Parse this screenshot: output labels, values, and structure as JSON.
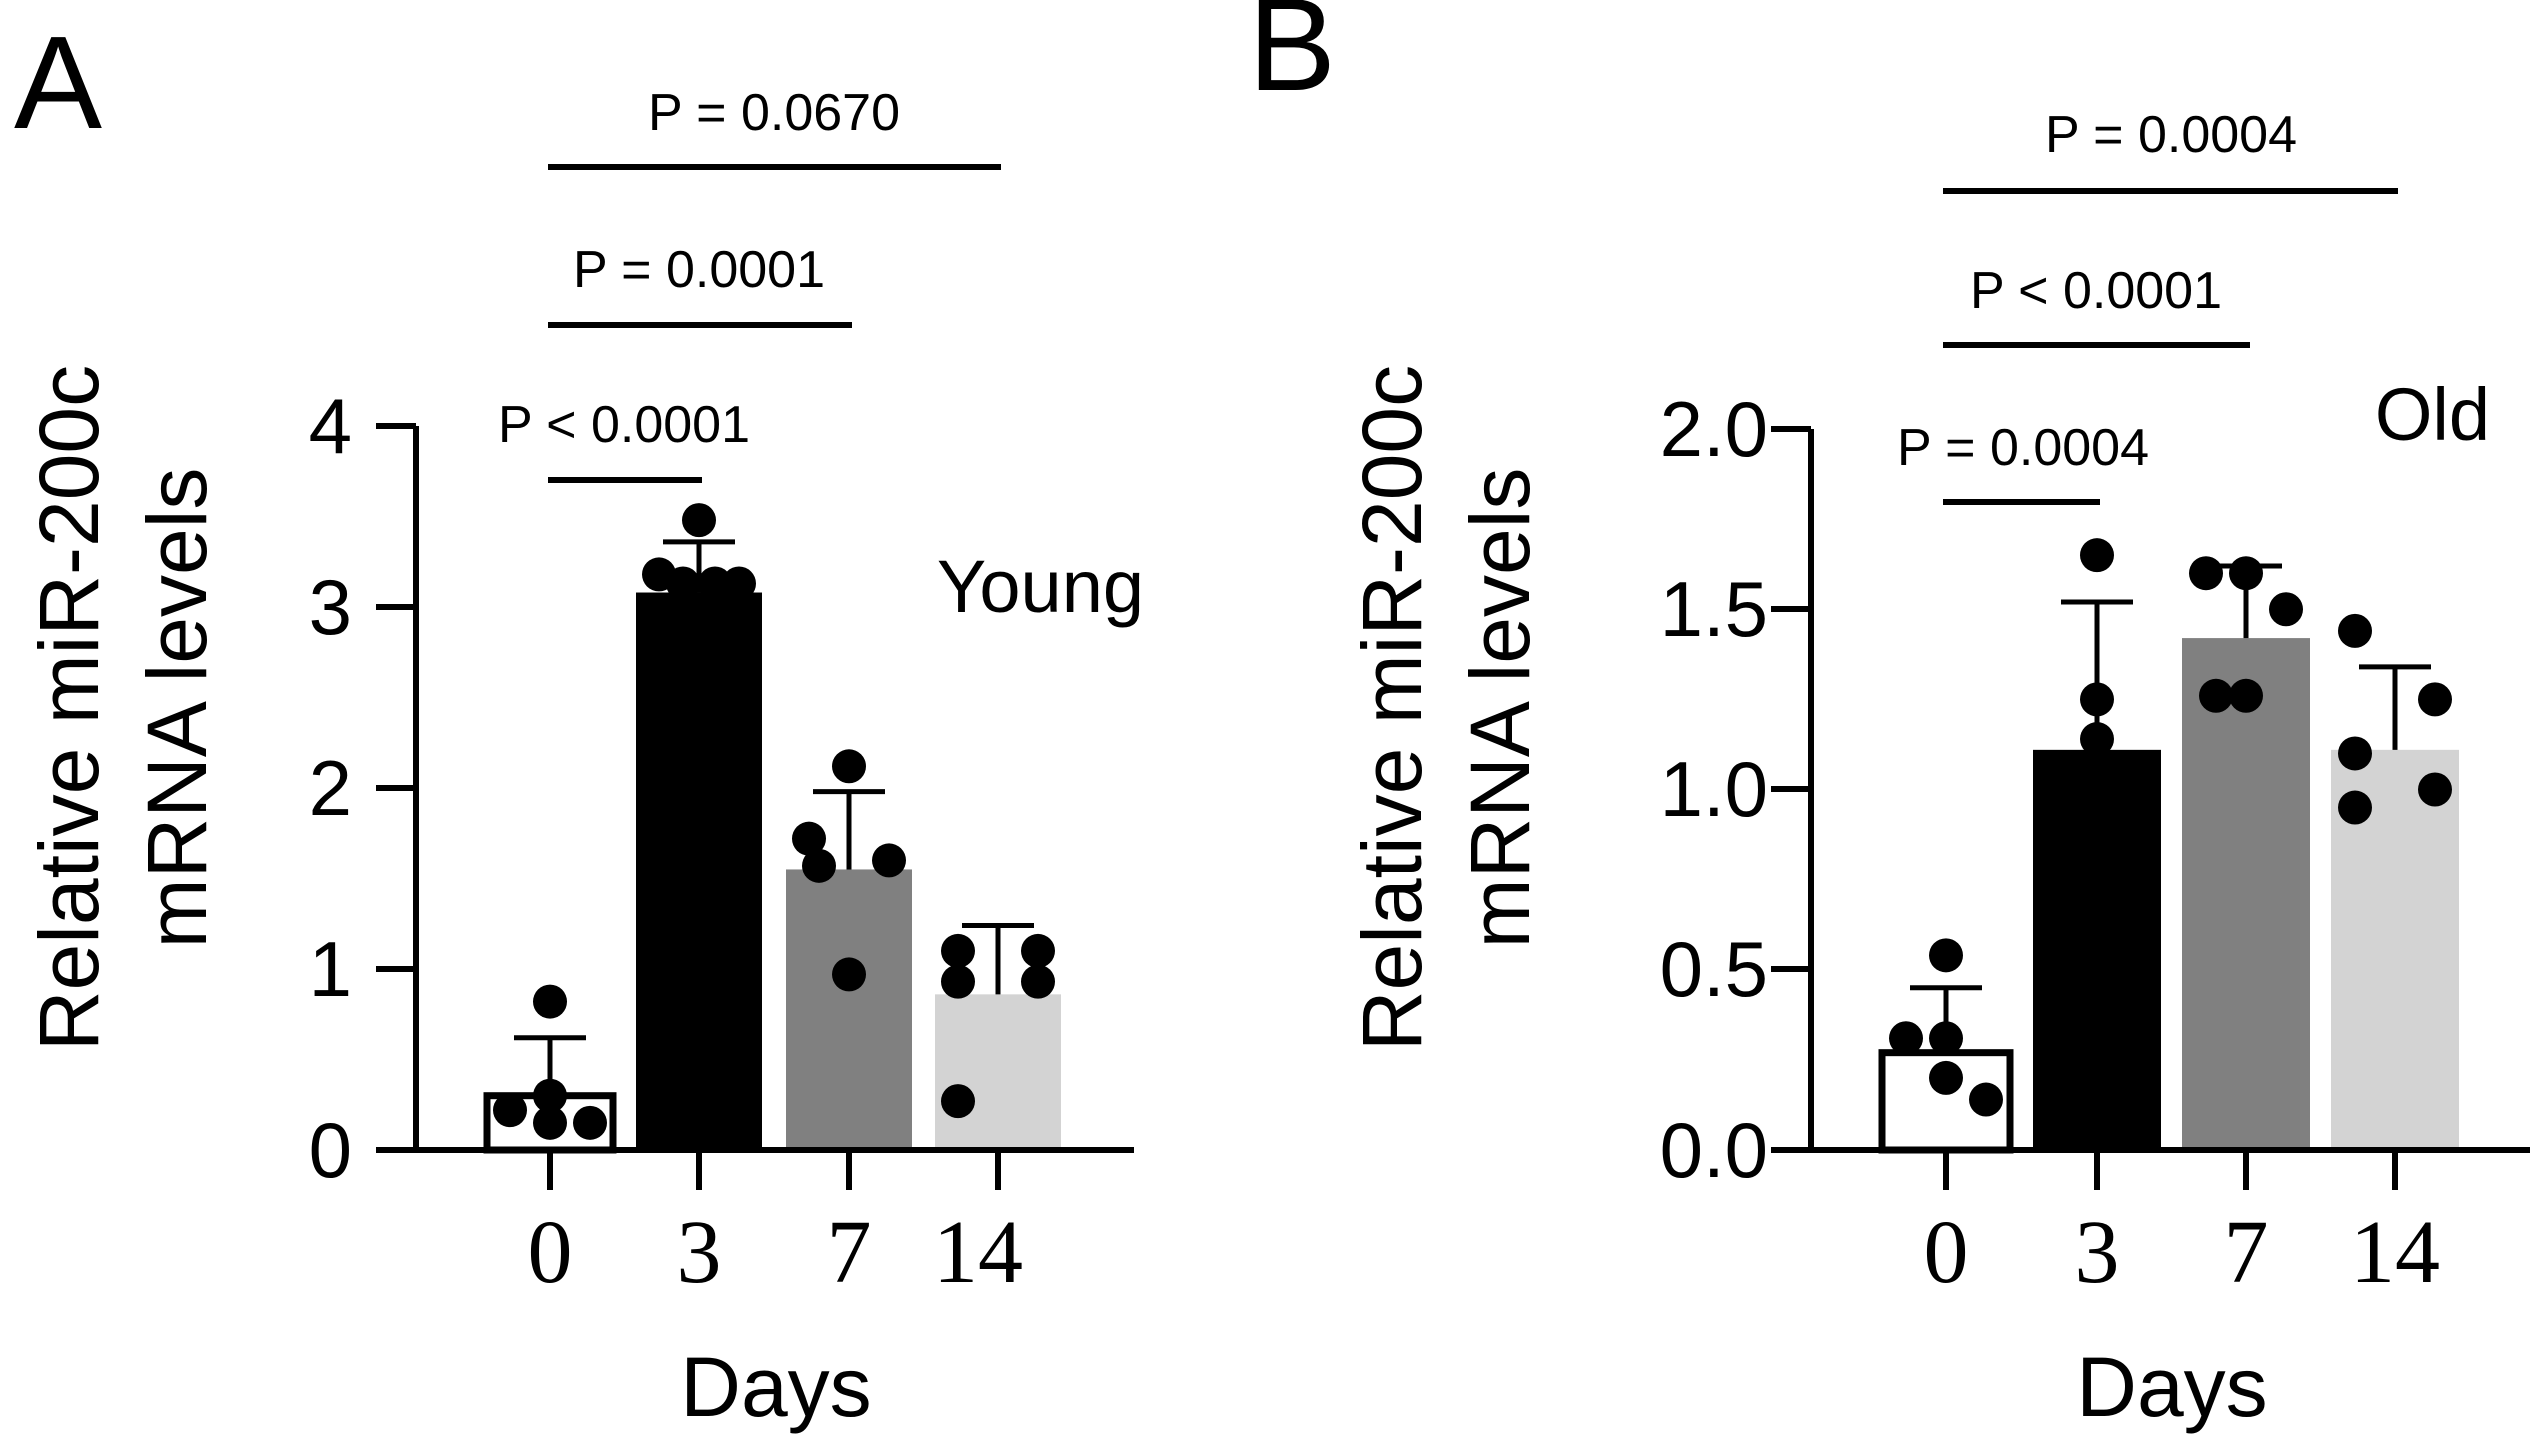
{
  "chart_data": [
    {
      "panel": "A",
      "type": "bar",
      "group_label": "Young",
      "ylabel_line1": "Relative miR-200c",
      "ylabel_line2": "mRNA levels",
      "xlabel": "Days",
      "categories": [
        "0",
        "3",
        "7",
        "14"
      ],
      "yticks": [
        "0",
        "1",
        "2",
        "3",
        "4"
      ],
      "ylim": [
        0,
        4
      ],
      "means": [
        0.3,
        3.08,
        1.55,
        0.86
      ],
      "sd": [
        0.32,
        0.28,
        0.43,
        0.38
      ],
      "points": [
        [
          0.82,
          0.3,
          0.22,
          0.15,
          0.15
        ],
        [
          3.48,
          3.18,
          3.13,
          3.13,
          3.13
        ],
        [
          2.12,
          1.72,
          1.6,
          1.57,
          0.97
        ],
        [
          1.1,
          1.1,
          0.93,
          0.93,
          0.27
        ]
      ],
      "colors": [
        "#ffffff",
        "#000000",
        "#808080",
        "#d3d3d3"
      ],
      "comparisons": [
        {
          "from": "0",
          "to": "3",
          "label": "P < 0.0001"
        },
        {
          "from": "0",
          "to": "7",
          "label": "P = 0.0001"
        },
        {
          "from": "0",
          "to": "14",
          "label": "P = 0.0670"
        }
      ]
    },
    {
      "panel": "B",
      "type": "bar",
      "group_label": "Old",
      "ylabel_line1": "Relative miR-200c",
      "ylabel_line2": "mRNA levels",
      "xlabel": "Days",
      "categories": [
        "0",
        "3",
        "7",
        "14"
      ],
      "yticks": [
        "0.0",
        "0.5",
        "1.0",
        "1.5",
        "2.0"
      ],
      "ylim": [
        0,
        2
      ],
      "means": [
        0.27,
        1.11,
        1.42,
        1.11
      ],
      "sd": [
        0.18,
        0.41,
        0.2,
        0.23
      ],
      "points": [
        [
          0.54,
          0.31,
          0.31,
          0.2,
          0.14
        ],
        [
          1.65,
          1.25,
          1.14
        ],
        [
          1.6,
          1.6,
          1.5,
          1.26,
          1.26
        ],
        [
          1.44,
          1.25,
          1.1,
          1.0,
          0.95
        ]
      ],
      "colors": [
        "#ffffff",
        "#000000",
        "#808080",
        "#d3d3d3"
      ],
      "comparisons": [
        {
          "from": "0",
          "to": "3",
          "label": "P = 0.0004"
        },
        {
          "from": "0",
          "to": "7",
          "label": "P < 0.0001"
        },
        {
          "from": "0",
          "to": "14",
          "label": "P = 0.0004"
        }
      ]
    }
  ]
}
